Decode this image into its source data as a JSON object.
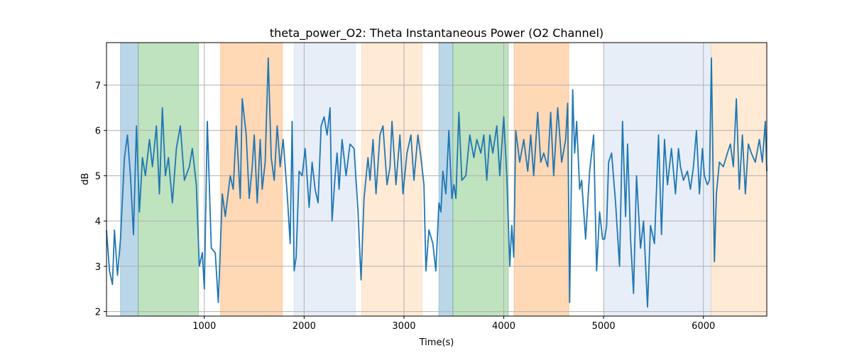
{
  "chart_data": {
    "type": "line",
    "title": "theta_power_O2: Theta Instantaneous Power (O2 Channel)",
    "xlabel": "Time(s)",
    "ylabel": "dB",
    "xlim": [
      20,
      6635
    ],
    "ylim": [
      1.9,
      7.94
    ],
    "grid": true,
    "xticks": [
      1000,
      2000,
      3000,
      4000,
      5000,
      6000
    ],
    "yticks": [
      2,
      3,
      4,
      5,
      6,
      7
    ],
    "line_color": "#1f77b4",
    "spans": [
      {
        "start": 160,
        "end": 338,
        "color": "#1f77b4",
        "opacity": 0.3
      },
      {
        "start": 338,
        "end": 943,
        "color": "#2ca02c",
        "opacity": 0.3
      },
      {
        "start": 1163,
        "end": 1782,
        "color": "#ff7f0e",
        "opacity": 0.3
      },
      {
        "start": 1900,
        "end": 2512,
        "color": "#aec7e8",
        "opacity": 0.3
      },
      {
        "start": 2577,
        "end": 3182,
        "color": "#ffbb78",
        "opacity": 0.3
      },
      {
        "start": 3350,
        "end": 3490,
        "color": "#1f77b4",
        "opacity": 0.3
      },
      {
        "start": 3490,
        "end": 4046,
        "color": "#2ca02c",
        "opacity": 0.3
      },
      {
        "start": 4103,
        "end": 4651,
        "color": "#ff7f0e",
        "opacity": 0.3
      },
      {
        "start": 5008,
        "end": 6076,
        "color": "#aec7e8",
        "opacity": 0.3
      },
      {
        "start": 6076,
        "end": 6635,
        "color": "#ffbb78",
        "opacity": 0.3
      }
    ],
    "x": [
      20,
      50,
      80,
      100,
      130,
      160,
      200,
      230,
      260,
      290,
      320,
      350,
      380,
      410,
      450,
      480,
      520,
      550,
      580,
      610,
      640,
      680,
      720,
      760,
      800,
      850,
      880,
      920,
      950,
      980,
      1000,
      1030,
      1070,
      1110,
      1140,
      1180,
      1210,
      1260,
      1290,
      1320,
      1360,
      1380,
      1420,
      1450,
      1480,
      1500,
      1530,
      1560,
      1580,
      1610,
      1640,
      1670,
      1700,
      1730,
      1760,
      1790,
      1830,
      1860,
      1880,
      1900,
      1920,
      1950,
      1980,
      2010,
      2050,
      2080,
      2110,
      2140,
      2170,
      2200,
      2230,
      2260,
      2280,
      2310,
      2330,
      2350,
      2380,
      2420,
      2460,
      2500,
      2540,
      2570,
      2600,
      2640,
      2660,
      2690,
      2720,
      2760,
      2790,
      2830,
      2860,
      2880,
      2920,
      2960,
      2990,
      3030,
      3070,
      3100,
      3140,
      3170,
      3200,
      3220,
      3250,
      3290,
      3320,
      3350,
      3370,
      3390,
      3420,
      3450,
      3480,
      3500,
      3520,
      3550,
      3580,
      3620,
      3660,
      3700,
      3730,
      3770,
      3800,
      3830,
      3860,
      3890,
      3930,
      3960,
      4000,
      4030,
      4060,
      4080,
      4100,
      4120,
      4160,
      4200,
      4240,
      4270,
      4300,
      4340,
      4370,
      4400,
      4440,
      4470,
      4500,
      4540,
      4580,
      4620,
      4640,
      4660,
      4690,
      4710,
      4730,
      4760,
      4780,
      4820,
      4860,
      4900,
      4930,
      4960,
      4990,
      5010,
      5030,
      5050,
      5080,
      5120,
      5160,
      5190,
      5220,
      5240,
      5270,
      5300,
      5330,
      5370,
      5400,
      5440,
      5470,
      5510,
      5550,
      5580,
      5610,
      5640,
      5680,
      5720,
      5750,
      5770,
      5800,
      5840,
      5870,
      5900,
      5930,
      5960,
      5990,
      6010,
      6040,
      6060,
      6080,
      6110,
      6130,
      6160,
      6200,
      6240,
      6270,
      6300,
      6330,
      6360,
      6390,
      6420,
      6450,
      6480,
      6520,
      6560,
      6590,
      6620,
      6635
    ],
    "y": [
      3.8,
      2.9,
      2.6,
      3.8,
      2.8,
      3.6,
      5.4,
      5.9,
      5.0,
      3.7,
      6.1,
      4.2,
      5.4,
      5.0,
      5.8,
      5.2,
      6.1,
      4.6,
      6.5,
      5.0,
      5.4,
      4.4,
      5.6,
      6.1,
      4.9,
      5.2,
      5.6,
      4.8,
      3.0,
      3.3,
      2.5,
      6.2,
      3.4,
      3.3,
      2.2,
      4.6,
      4.1,
      5.0,
      4.7,
      6.1,
      4.5,
      6.7,
      5.9,
      4.5,
      5.2,
      5.9,
      4.4,
      5.8,
      4.7,
      5.3,
      7.6,
      5.4,
      4.9,
      6.1,
      5.2,
      5.8,
      4.6,
      3.5,
      6.2,
      2.9,
      3.2,
      5.1,
      5.0,
      5.6,
      4.3,
      5.3,
      4.7,
      4.4,
      6.1,
      6.3,
      5.9,
      6.5,
      4.0,
      5.0,
      5.5,
      4.7,
      5.8,
      5.0,
      5.7,
      5.6,
      4.2,
      2.7,
      4.5,
      5.4,
      4.9,
      5.8,
      4.6,
      5.9,
      6.1,
      4.8,
      5.2,
      6.2,
      4.8,
      5.9,
      4.6,
      5.5,
      5.9,
      4.9,
      5.9,
      5.4,
      4.8,
      2.9,
      3.8,
      3.5,
      2.9,
      4.4,
      4.2,
      5.1,
      4.6,
      6.0,
      4.5,
      4.8,
      4.5,
      6.4,
      4.9,
      5.0,
      5.9,
      5.4,
      5.8,
      5.5,
      5.9,
      4.9,
      5.9,
      5.5,
      6.1,
      5.0,
      6.3,
      5.0,
      3.0,
      3.9,
      3.2,
      6.0,
      5.3,
      5.8,
      5.1,
      5.9,
      5.0,
      6.4,
      5.3,
      5.5,
      5.2,
      6.4,
      5.0,
      6.5,
      5.3,
      5.8,
      6.6,
      2.2,
      6.9,
      5.5,
      6.2,
      4.7,
      4.9,
      3.6,
      5.1,
      5.9,
      2.9,
      4.2,
      3.6,
      3.6,
      3.9,
      5.3,
      5.5,
      4.4,
      3.0,
      6.2,
      4.1,
      5.7,
      3.6,
      2.4,
      5.0,
      3.4,
      4.0,
      2.1,
      3.9,
      3.5,
      5.9,
      3.7,
      5.8,
      4.8,
      5.6,
      4.6,
      5.6,
      5.2,
      4.9,
      5.1,
      4.7,
      5.2,
      6.0,
      4.6,
      5.6,
      5.0,
      4.8,
      4.9,
      7.6,
      3.1,
      4.6,
      5.3,
      5.2,
      5.5,
      5.7,
      5.2,
      6.7,
      4.7,
      5.9,
      4.6,
      5.7,
      5.5,
      5.3,
      5.8,
      5.3,
      6.2,
      5.1
    ]
  }
}
